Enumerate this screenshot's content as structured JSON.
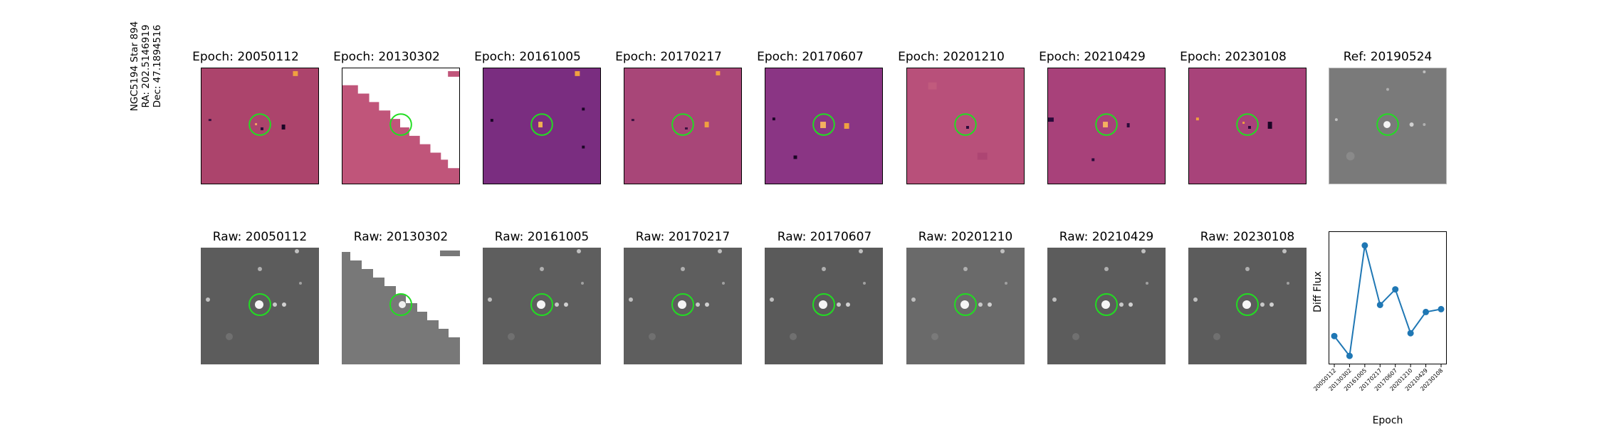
{
  "target": {
    "label_line1": "NGC5194 Star 894",
    "label_line2": "RA: 202.5146919",
    "label_line3": "Dec: 47.1894516"
  },
  "diff_row": {
    "titles": [
      "Epoch: 20050112",
      "Epoch: 20130302",
      "Epoch: 20161005",
      "Epoch: 20170217",
      "Epoch: 20170607",
      "Epoch: 20201210",
      "Epoch: 20210429",
      "Epoch: 20230108"
    ],
    "ref_title": "Ref: 20190524"
  },
  "raw_row": {
    "titles": [
      "Raw: 20050112",
      "Raw: 20130302",
      "Raw: 20161005",
      "Raw: 20170217",
      "Raw: 20170607",
      "Raw: 20201210",
      "Raw: 20210429",
      "Raw: 20230108"
    ]
  },
  "colors": {
    "marker_circle": "#22dd22",
    "series_line": "#1f77b4",
    "diff_background": "#b0476d",
    "raw_background": "#5a5a5a",
    "mask_fill": "#ffffff"
  },
  "chart_data": {
    "type": "line",
    "xlabel": "Epoch",
    "ylabel": "Diff Flux",
    "x": [
      "20050112",
      "20130302",
      "20161005",
      "20170217",
      "20170607",
      "20201210",
      "20210429",
      "20230108"
    ],
    "series": [
      {
        "values": [
          0.2,
          -0.5,
          3.4,
          1.3,
          1.85,
          0.3,
          1.05,
          1.15
        ]
      }
    ],
    "ylim": [
      -0.8,
      3.9
    ],
    "grid": false,
    "legend": "none"
  }
}
